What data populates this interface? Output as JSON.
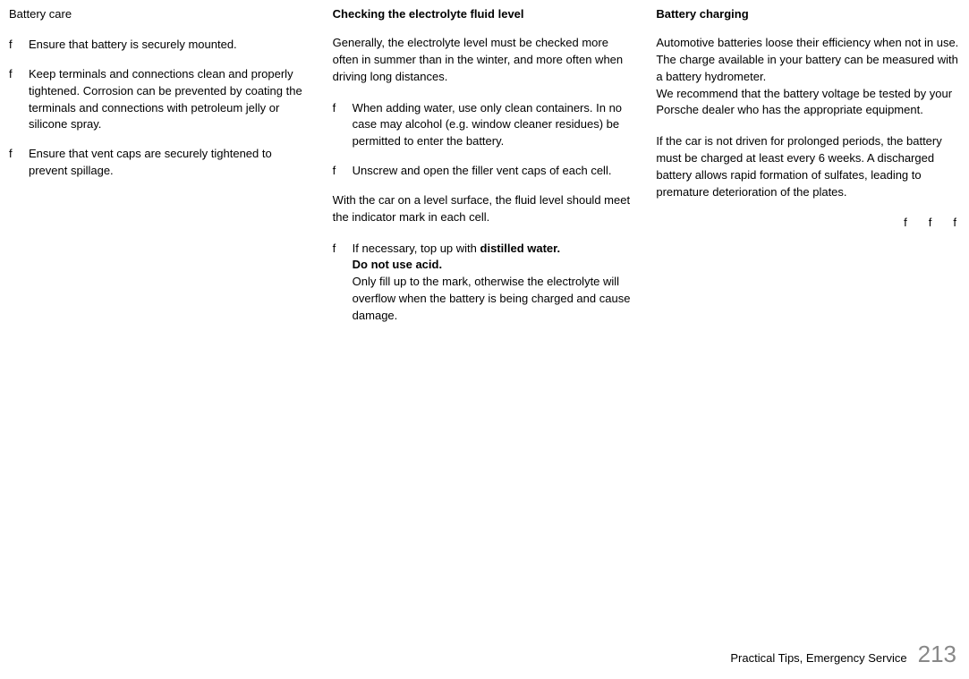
{
  "col1": {
    "title": "Battery care",
    "items": [
      {
        "marker": "f",
        "text": "Ensure that battery is securely mounted."
      },
      {
        "marker": "f",
        "text": "Keep terminals and connections clean and properly tightened.\nCorrosion can be prevented by coating the terminals and connections with petroleum jelly or silicone spray."
      },
      {
        "marker": "f",
        "text": "Ensure that vent caps are securely tightened to prevent spillage."
      }
    ]
  },
  "col2": {
    "title": "Checking the electrolyte fluid level",
    "intro": "Generally, the electrolyte level must be checked more often in summer than in the winter, and more often when driving long distances.",
    "items1": [
      {
        "marker": "f",
        "text": "When adding water, use only clean containers. In no case may alcohol (e.g. window cleaner residues) be permitted to enter the battery."
      },
      {
        "marker": "f",
        "text": "Unscrew and open the filler vent caps of each cell."
      }
    ],
    "mid": "With the car on a level surface, the fluid level should meet the indicator mark in each cell.",
    "item2_marker": "f",
    "item2_line1a": "If necessary, top up with ",
    "item2_line1b": "distilled water.",
    "item2_line2": "Do not use acid.",
    "item2_line3": "Only fill up to the mark, otherwise the electrolyte will overflow when the battery is being charged and cause damage."
  },
  "col3": {
    "title": "Battery charging",
    "p1": "Automotive batteries loose their efficiency when not in use.\nThe charge available in your battery can be measured with a battery hydrometer.\nWe recommend that the battery voltage be tested by your Porsche dealer who has the appropriate equipment.",
    "p2": "If the car is not driven for prolonged periods, the battery must be charged at least every 6 weeks. A discharged battery allows rapid formation of sulfates, leading to premature deterioration of the plates.",
    "fs": [
      "f",
      "f",
      "f"
    ]
  },
  "footer": {
    "text": "Practical Tips, Emergency Service",
    "page": "213"
  }
}
